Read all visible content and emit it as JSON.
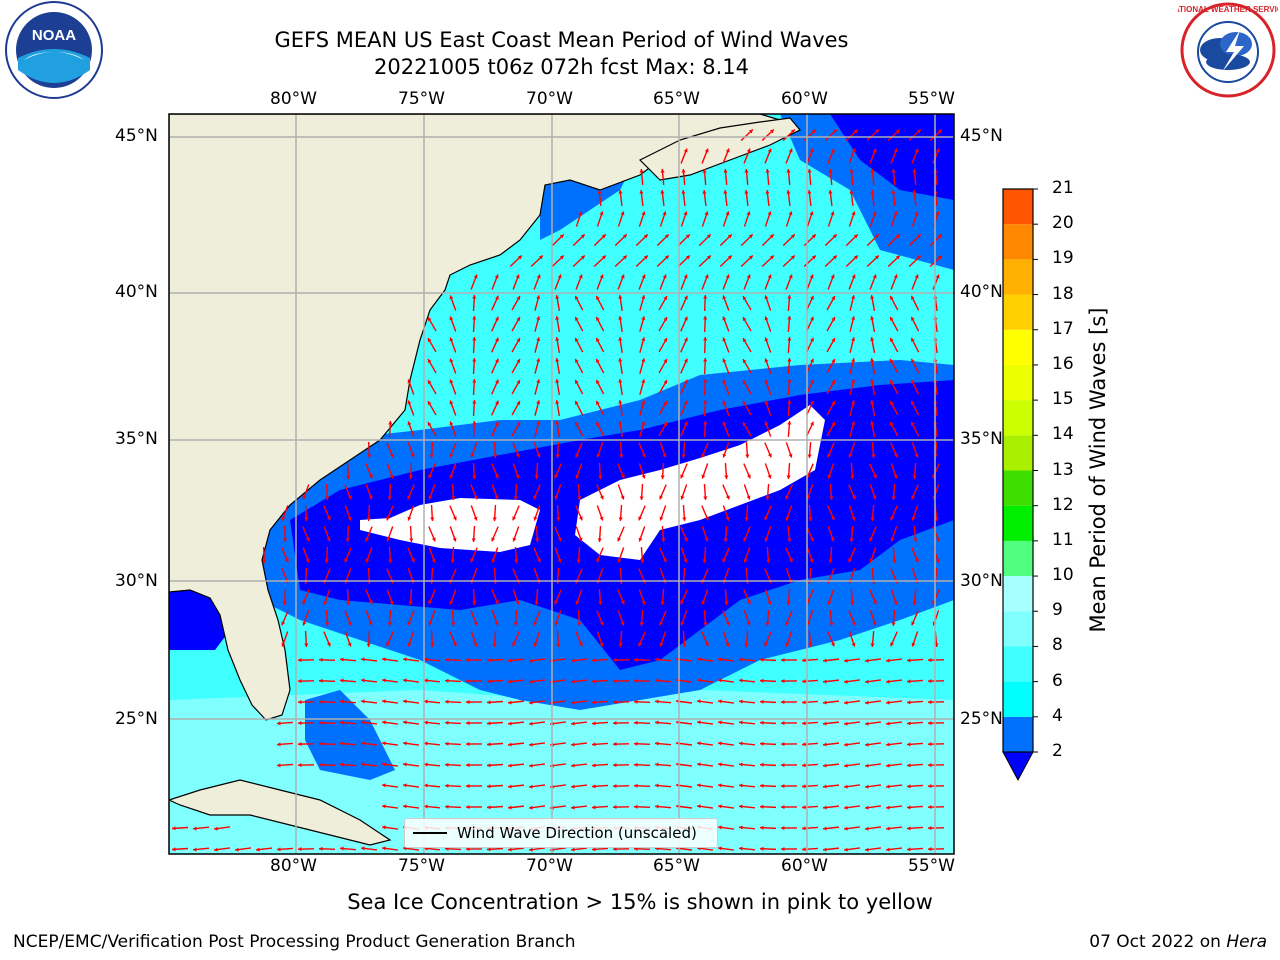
{
  "title": {
    "line1": "GEFS MEAN US East Coast Mean Period of Wind Waves",
    "line2": "20221005 t06z 072h fcst   Max: 8.14"
  },
  "logos": {
    "left": "NOAA",
    "right": "NATIONAL WEATHER SERVICE"
  },
  "axes": {
    "lon_labels": [
      "80°W",
      "75°W",
      "70°W",
      "65°W",
      "60°W",
      "55°W"
    ],
    "lat_labels": [
      "45°N",
      "40°N",
      "35°N",
      "30°N",
      "25°N"
    ]
  },
  "colorbar": {
    "label": "Mean Period of Wind Waves [s]",
    "ticks": [
      "2",
      "4",
      "6",
      "8",
      "9",
      "10",
      "11",
      "12",
      "13",
      "14",
      "15",
      "16",
      "17",
      "18",
      "19",
      "20",
      "21"
    ],
    "colors": [
      "#0070ff",
      "#00ffff",
      "#40ffff",
      "#80ffff",
      "#a8ffff",
      "#50ff80",
      "#00ee00",
      "#40dd00",
      "#aaee00",
      "#ccff00",
      "#eeff00",
      "#ffff00",
      "#ffd000",
      "#ffb000",
      "#ff8800",
      "#ff5500",
      "#ff2200",
      "#ff0000"
    ],
    "under_color": "#0000ff"
  },
  "legend": {
    "label": "Wind Wave Direction (unscaled)"
  },
  "footer": {
    "sea_ice": "Sea Ice Concentration > 15% is shown in pink to yellow",
    "credit": "NCEP/EMC/Verification Post Processing Product Generation Branch",
    "date": "07 Oct 2022 on",
    "machine": "Hera"
  },
  "colors": {
    "land": "#efeedb",
    "arrow": "#ff0000",
    "grid": "#b0b0b0"
  }
}
